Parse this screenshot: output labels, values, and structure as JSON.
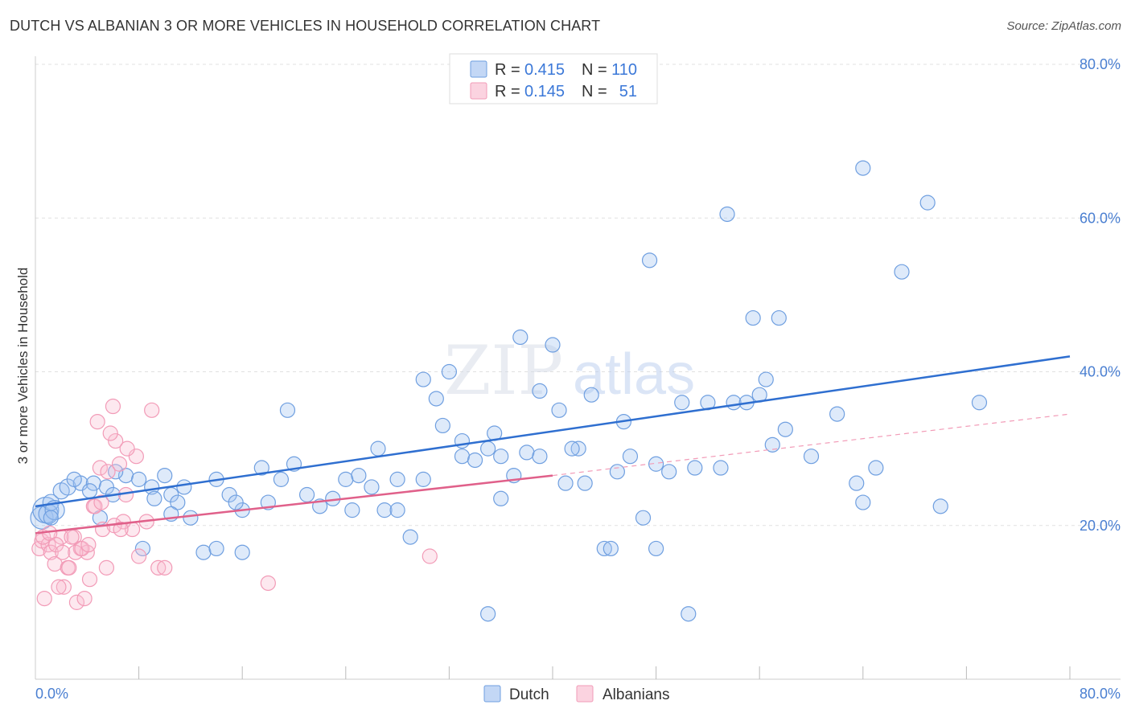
{
  "header": {
    "title": "DUTCH VS ALBANIAN 3 OR MORE VEHICLES IN HOUSEHOLD CORRELATION CHART",
    "source": "Source: ZipAtlas.com"
  },
  "watermark": {
    "part1": "ZIP",
    "part2": "atlas"
  },
  "legend": {
    "rows": [
      {
        "r_label": "R =",
        "r_value": "0.415",
        "n_label": "N =",
        "n_value": "110",
        "color": "#6f9fe0"
      },
      {
        "r_label": "R =",
        "r_value": "0.145",
        "n_label": "N =",
        "n_value": "51",
        "color": "#f29bb7"
      }
    ]
  },
  "bottom_legend": [
    {
      "name": "Dutch",
      "color": "#6f9fe0"
    },
    {
      "name": "Albanians",
      "color": "#f29bb7"
    }
  ],
  "chart_data": {
    "type": "scatter",
    "xlabel": "",
    "ylabel": "3 or more Vehicles in Household",
    "xlim": [
      0,
      80
    ],
    "ylim": [
      0,
      80
    ],
    "x_tick_labels": [
      "0.0%",
      "80.0%"
    ],
    "y_tick_labels": [
      "20.0%",
      "40.0%",
      "60.0%",
      "80.0%"
    ],
    "y_ticks": [
      20,
      40,
      60,
      80
    ],
    "grid": true,
    "colors": {
      "dutch": "#6f9fe0",
      "dutch_line": "#2f6fd0",
      "albanians": "#f29bb7",
      "albanians_line": "#e0608a"
    },
    "series": [
      {
        "name": "Dutch",
        "x": [
          0.5,
          0.8,
          1.0,
          1.2,
          1.5,
          2.0,
          2.5,
          3.5,
          4.5,
          5.5,
          6.0,
          7.0,
          8.0,
          9.0,
          10.0,
          10.5,
          11.0,
          12.0,
          13.0,
          14.0,
          15.0,
          16.0,
          17.5,
          18.0,
          19.0,
          20.0,
          21.0,
          22.0,
          23.0,
          24.0,
          25.0,
          26.0,
          27.0,
          28.0,
          29.0,
          30.0,
          31.0,
          32.0,
          33.0,
          34.0,
          35.0,
          36.0,
          37.0,
          38.0,
          39.0,
          40.0,
          41.0,
          42.0,
          43.0,
          44.0,
          45.0,
          46.0,
          47.0,
          48.0,
          49.0,
          50.0,
          51.0,
          52.0,
          53.0,
          54.0,
          55.0,
          56.0,
          57.0,
          58.0,
          60.0,
          62.0,
          63.5,
          64.0,
          65.0,
          67.0,
          69.0,
          70.0,
          30.0,
          37.5,
          39.0,
          40.5,
          47.5,
          53.5,
          56.5,
          57.5,
          64.0,
          73.0,
          55.5,
          14.0,
          16.0,
          15.5,
          1.2,
          3.0,
          4.2,
          6.2,
          5.0,
          8.3,
          9.2,
          10.5,
          11.5,
          19.5,
          24.5,
          26.5,
          28.0,
          31.5,
          33.0,
          35.5,
          36.0,
          41.5,
          42.5,
          44.5,
          45.5,
          48.0,
          50.5,
          35.0
        ],
        "y": [
          21,
          22,
          21.5,
          23,
          22,
          24.5,
          25,
          25.5,
          25.5,
          25,
          24,
          26.5,
          26,
          25,
          26.5,
          24,
          23,
          21,
          16.5,
          26,
          24,
          22,
          27.5,
          23,
          26,
          28,
          24,
          22.5,
          23.5,
          26,
          26.5,
          25,
          22,
          22,
          18.5,
          39,
          36.5,
          40,
          29,
          28.5,
          30,
          23.5,
          26.5,
          29.5,
          29,
          43.5,
          25.5,
          30,
          37,
          17,
          27,
          29,
          21,
          28,
          27,
          36,
          27.5,
          36,
          27.5,
          36,
          36,
          37,
          30.5,
          32.5,
          29,
          34.5,
          25.5,
          23,
          27.5,
          53,
          62,
          22.5,
          26,
          44.5,
          37.5,
          35,
          54.5,
          60.5,
          39,
          47,
          66.5,
          36,
          47,
          17,
          16.5,
          23,
          21,
          26,
          24.5,
          27,
          21,
          17,
          23.5,
          21.5,
          25,
          35,
          22,
          30,
          26,
          33,
          31,
          32,
          29,
          30,
          25.5,
          17,
          33.5,
          17,
          8.5,
          8.5
        ],
        "sizes": [
          14,
          16,
          12,
          10,
          12,
          10,
          10,
          9,
          9,
          9,
          9,
          9,
          9,
          9,
          9,
          9,
          9,
          9,
          9,
          9,
          9,
          9,
          9,
          9,
          9,
          9,
          9,
          9,
          9,
          9,
          9,
          9,
          9,
          9,
          9,
          9,
          9,
          9,
          9,
          9,
          9,
          9,
          9,
          9,
          9,
          9,
          9,
          9,
          9,
          9,
          9,
          9,
          9,
          9,
          9,
          9,
          9,
          9,
          9,
          9,
          9,
          9,
          9,
          9,
          9,
          9,
          9,
          9,
          9,
          9,
          9,
          9,
          9,
          9,
          9,
          9,
          9,
          9,
          9,
          9,
          9,
          9,
          9,
          9,
          9,
          9,
          9,
          9,
          9,
          9,
          9,
          9,
          9,
          9,
          9,
          9,
          9,
          9,
          9,
          9,
          9,
          9,
          9,
          9,
          9,
          9,
          9,
          9,
          9,
          9
        ],
        "trend": {
          "x": [
            0,
            80
          ],
          "y": [
            22.5,
            42
          ]
        }
      },
      {
        "name": "Albanians",
        "x": [
          0.3,
          0.5,
          0.7,
          1.0,
          1.2,
          1.5,
          2.0,
          2.2,
          2.5,
          3.0,
          3.2,
          3.5,
          4.0,
          4.2,
          4.5,
          5.0,
          5.2,
          5.5,
          6.0,
          6.2,
          6.5,
          7.0,
          7.5,
          8.0,
          9.0,
          9.5,
          10.0,
          1.8,
          2.8,
          3.8,
          4.8,
          5.8,
          6.8,
          7.8,
          0.6,
          1.1,
          1.6,
          2.1,
          2.6,
          3.1,
          3.6,
          4.1,
          4.6,
          5.1,
          5.6,
          6.1,
          6.6,
          7.1,
          8.6,
          18.0,
          30.5
        ],
        "y": [
          17,
          18,
          10.5,
          17.5,
          16.5,
          15,
          18.5,
          12,
          14.5,
          18.5,
          10,
          17,
          16.5,
          13,
          22.5,
          27.5,
          19.5,
          14.5,
          35.5,
          31,
          28,
          24,
          19.5,
          16,
          35,
          14.5,
          14.5,
          12,
          18.5,
          10.5,
          33.5,
          32,
          20.5,
          29,
          18.5,
          19,
          17.5,
          16.5,
          14.5,
          16.5,
          17,
          17.5,
          22.5,
          23,
          27,
          20,
          19.5,
          30,
          20.5,
          12.5,
          16
        ],
        "sizes": [
          9,
          9,
          9,
          9,
          9,
          9,
          9,
          9,
          9,
          9,
          9,
          9,
          9,
          9,
          9,
          9,
          9,
          9,
          9,
          9,
          9,
          9,
          9,
          9,
          9,
          9,
          9,
          9,
          9,
          9,
          9,
          9,
          9,
          9,
          9,
          9,
          9,
          9,
          9,
          9,
          9,
          9,
          9,
          9,
          9,
          9,
          9,
          9,
          9,
          9,
          9
        ],
        "trend": {
          "x": [
            0,
            40
          ],
          "y": [
            19,
            26.5
          ]
        },
        "trend_extension": {
          "x": [
            40,
            80
          ],
          "y": [
            26.5,
            34.5
          ]
        }
      }
    ]
  }
}
